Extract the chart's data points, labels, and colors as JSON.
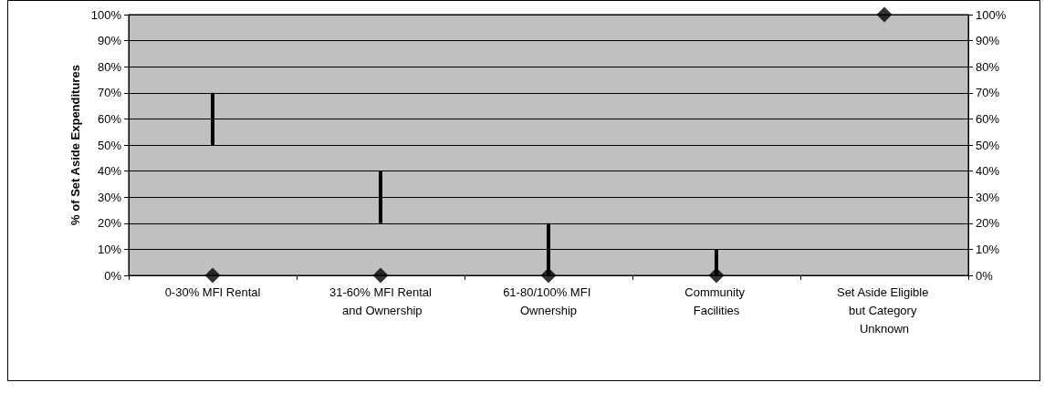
{
  "chart_data": {
    "type": "bar",
    "ylabel": "% of Set Aside Expenditures",
    "categories": [
      "0-30% MFI Rental",
      "31-60% MFI Rental and Ownership",
      "61-80/100% MFI Ownership",
      "Community Facilities",
      "Set Aside Eligible but Category Unknown"
    ],
    "series": [
      {
        "color": "#000000",
        "base": [
          50,
          20,
          0,
          0,
          null
        ],
        "values": [
          20,
          20,
          20,
          10,
          null
        ]
      },
      {
        "type": "scatter",
        "color": "#000000",
        "marker": "diamond",
        "x": [
          "0-30% MFI Rental",
          "31-60% MFI Rental and Ownership",
          "61-80/100% MFI Ownership",
          "Community Facilities",
          "Set Aside Eligible but Category Unknown"
        ],
        "values": [
          0,
          0,
          0,
          0,
          100
        ]
      }
    ],
    "ylim": [
      0,
      100
    ],
    "yticks": [
      {
        "value": 0,
        "label": "0%"
      },
      {
        "value": 10,
        "label": "10%"
      },
      {
        "value": 20,
        "label": "20%"
      },
      {
        "value": 30,
        "label": "30%"
      },
      {
        "value": 40,
        "label": "40%"
      },
      {
        "value": 50,
        "label": "50%"
      },
      {
        "value": 60,
        "label": "60%"
      },
      {
        "value": 70,
        "label": "70%"
      },
      {
        "value": 80,
        "label": "80%"
      },
      {
        "value": 90,
        "label": "90%"
      },
      {
        "value": 100,
        "label": "100%"
      }
    ],
    "y2lim": [
      0,
      100
    ],
    "y2ticks": [
      {
        "value": 0,
        "label": "0%"
      },
      {
        "value": 10,
        "label": "10%"
      },
      {
        "value": 20,
        "label": "20%"
      },
      {
        "value": 30,
        "label": "30%"
      },
      {
        "value": 40,
        "label": "40%"
      },
      {
        "value": 50,
        "label": "50%"
      },
      {
        "value": 60,
        "label": "60%"
      },
      {
        "value": 70,
        "label": "70%"
      },
      {
        "value": 80,
        "label": "80%"
      },
      {
        "value": 90,
        "label": "90%"
      },
      {
        "value": 100,
        "label": "100%"
      }
    ],
    "grid": "y"
  }
}
